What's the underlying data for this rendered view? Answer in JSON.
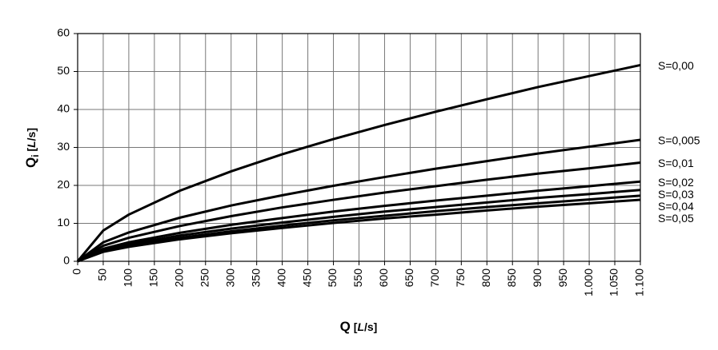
{
  "chart_data": {
    "type": "line",
    "xlabel": [
      "Q",
      " [",
      "L",
      "/s]"
    ],
    "ylabel": [
      "Q",
      "i",
      " [",
      "L",
      "/s]"
    ],
    "x": [
      0,
      50,
      100,
      200,
      300,
      400,
      500,
      600,
      700,
      800,
      900,
      1000,
      1100
    ],
    "series": [
      {
        "name": "S=0,00",
        "color": "#000000",
        "values": [
          0,
          8.1,
          12.3,
          18.6,
          23.7,
          28.2,
          32.2,
          35.9,
          39.4,
          42.7,
          45.9,
          48.8,
          51.7
        ]
      },
      {
        "name": "S=0,005",
        "color": "#000000",
        "values": [
          0,
          5.0,
          7.6,
          11.5,
          14.7,
          17.4,
          19.9,
          22.2,
          24.4,
          26.4,
          28.4,
          30.2,
          32.0
        ]
      },
      {
        "name": "S=0,01",
        "color": "#000000",
        "values": [
          0,
          4.1,
          6.2,
          9.3,
          11.9,
          14.2,
          16.2,
          18.1,
          19.8,
          21.5,
          23.1,
          24.5,
          26.0
        ]
      },
      {
        "name": "S=0,02",
        "color": "#000000",
        "values": [
          0,
          3.3,
          5.0,
          7.5,
          9.6,
          11.4,
          13.1,
          14.6,
          16.0,
          17.3,
          18.6,
          19.8,
          21.0
        ]
      },
      {
        "name": "S=0,03",
        "color": "#000000",
        "values": [
          0,
          2.9,
          4.5,
          6.8,
          8.6,
          10.2,
          11.7,
          13.1,
          14.3,
          15.5,
          16.7,
          17.7,
          18.8
        ]
      },
      {
        "name": "S=0,04",
        "color": "#000000",
        "values": [
          0,
          2.7,
          4.1,
          6.2,
          7.9,
          9.4,
          10.8,
          12.0,
          13.2,
          14.3,
          15.3,
          16.3,
          17.3
        ]
      },
      {
        "name": "S=0,05",
        "color": "#000000",
        "values": [
          0,
          2.5,
          3.8,
          5.8,
          7.4,
          8.8,
          10.1,
          11.3,
          12.3,
          13.4,
          14.4,
          15.3,
          16.2
        ]
      }
    ],
    "xlim": [
      0,
      1100
    ],
    "xticks": [
      0,
      50,
      100,
      150,
      200,
      250,
      300,
      350,
      400,
      450,
      500,
      550,
      600,
      650,
      700,
      750,
      800,
      850,
      900,
      950,
      {
        "value": 1000,
        "label": "1.000"
      },
      {
        "value": 1050,
        "label": "1.050"
      },
      {
        "value": 1100,
        "label": "1.100"
      }
    ],
    "ylim": [
      0,
      60
    ],
    "yticks": [
      0,
      10,
      20,
      30,
      40,
      50,
      60
    ],
    "grid": true
  }
}
